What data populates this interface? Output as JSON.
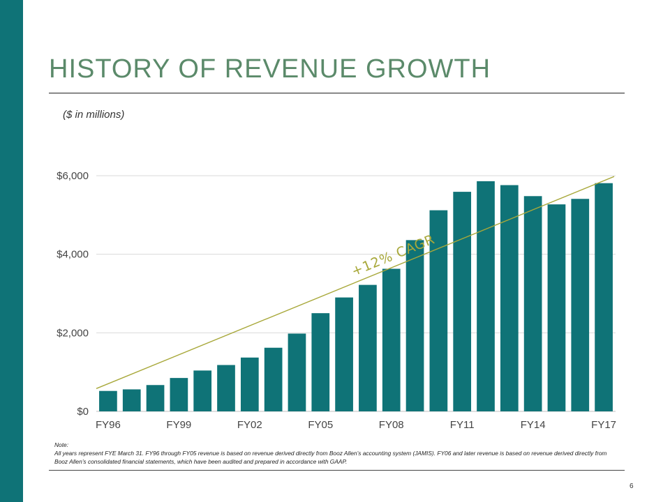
{
  "slide": {
    "title": "HISTORY OF REVENUE GROWTH",
    "subtitle": "($ in millions)",
    "note_label": "Note:",
    "note_text": "All years represent FYE March 31. FY96 through FY05 revenue is based on revenue derived directly from Booz Allen’s accounting system (JAMIS). FY06 and later revenue is based on revenue derived directly from Booz Allen’s consolidated financial statements, which have been audited and prepared in accordance with GAAP.",
    "page_number": "6"
  },
  "colors": {
    "bar": "#0f7377",
    "trend": "#a8a83a",
    "title": "#5b8a6a",
    "grid": "#d9d9d9"
  },
  "chart_data": {
    "type": "bar",
    "categories": [
      "FY96",
      "FY97",
      "FY98",
      "FY99",
      "FY00",
      "FY01",
      "FY02",
      "FY03",
      "FY04",
      "FY05",
      "FY06",
      "FY07",
      "FY08",
      "FY09",
      "FY10",
      "FY11",
      "FY12",
      "FY13",
      "FY14",
      "FY15",
      "FY16",
      "FY17"
    ],
    "values": [
      520,
      560,
      670,
      850,
      1040,
      1180,
      1370,
      1620,
      1980,
      2500,
      2900,
      3220,
      3630,
      4360,
      5120,
      5590,
      5860,
      5760,
      5480,
      5270,
      5410,
      5810
    ],
    "x_tick_labels": [
      "FY96",
      "FY99",
      "FY02",
      "FY05",
      "FY08",
      "FY11",
      "FY14",
      "FY17"
    ],
    "y_ticks": [
      0,
      2000,
      4000,
      6000
    ],
    "y_tick_labels": [
      "$0",
      "$2,000",
      "$4,000",
      "$6,000"
    ],
    "ylim": [
      0,
      6000
    ],
    "grid": true,
    "trend_line": {
      "label": "+12% CAGR",
      "start": 580,
      "end": 5980
    }
  }
}
